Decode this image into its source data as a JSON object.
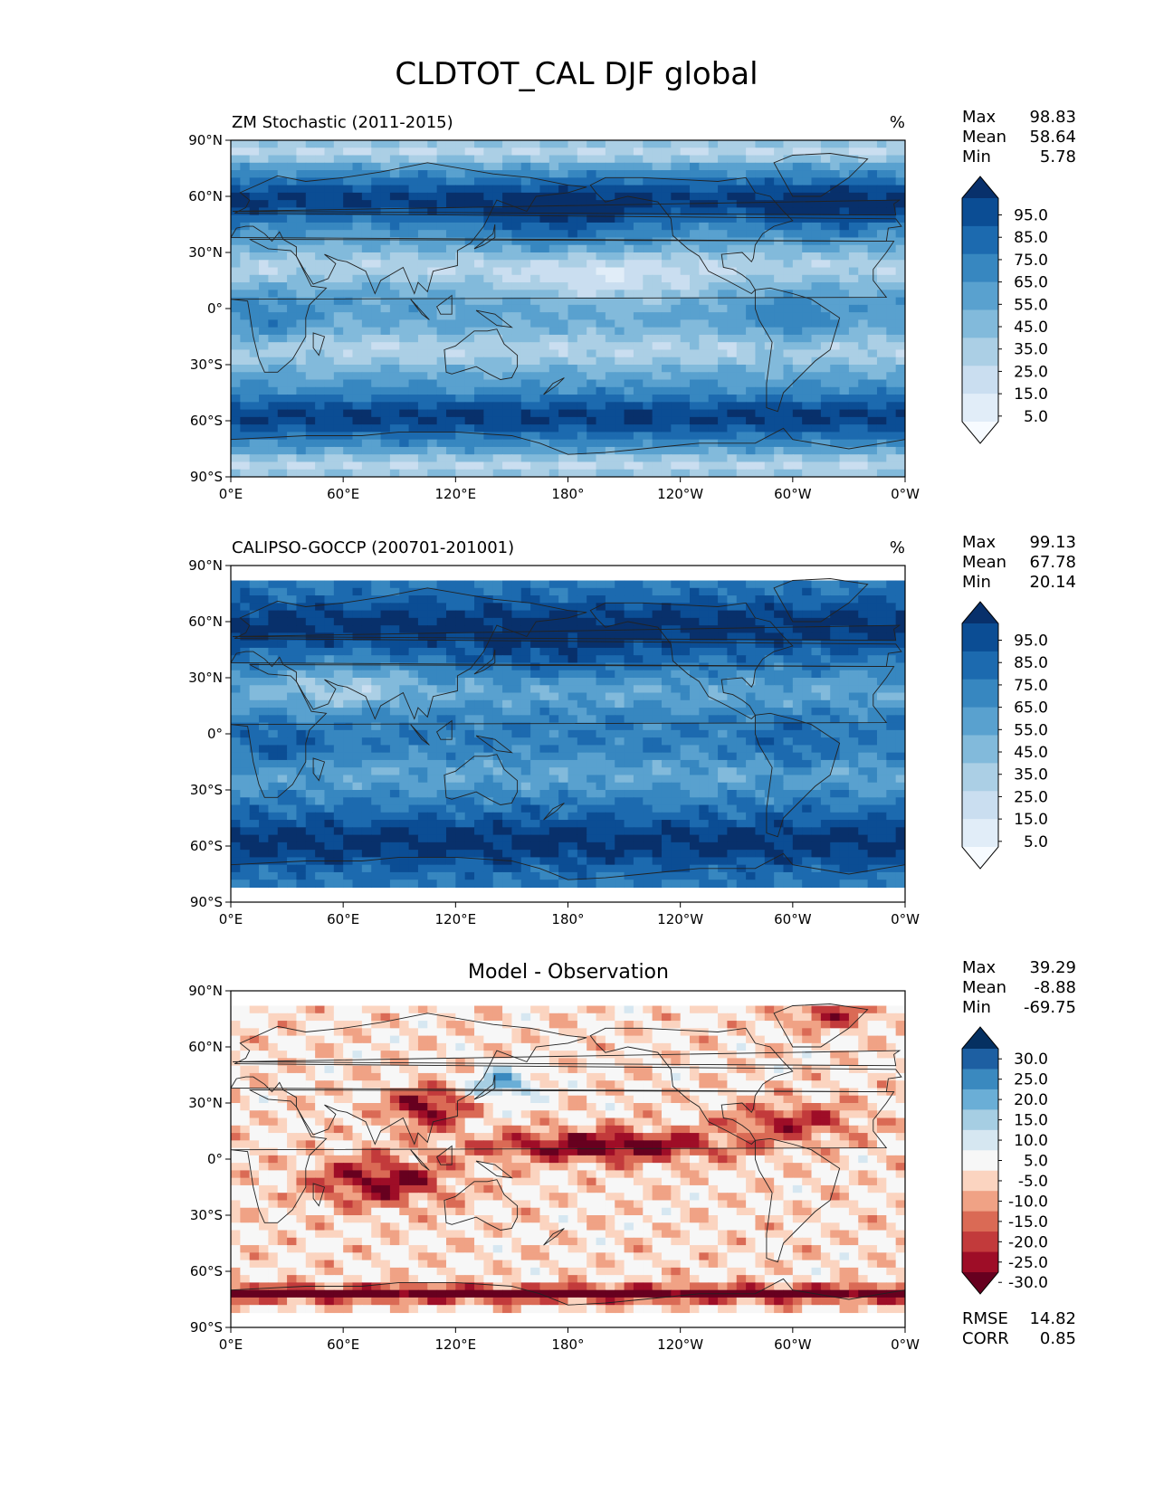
{
  "figure_title": "CLDTOT_CAL DJF global",
  "x_ticks": [
    "0°E",
    "60°E",
    "120°E",
    "180°",
    "120°W",
    "60°W",
    "0°W"
  ],
  "y_ticks": [
    "90°N",
    "60°N",
    "30°N",
    "0°",
    "30°S",
    "60°S",
    "90°S"
  ],
  "stat_labels": {
    "max": "Max",
    "mean": "Mean",
    "min": "Min",
    "rmse": "RMSE",
    "corr": "CORR"
  },
  "chart_data": [
    {
      "type": "heatmap",
      "title": "ZM Stochastic (2011-2015)",
      "units": "%",
      "stats": {
        "max": "98.83",
        "mean": "58.64",
        "min": "5.78"
      },
      "colorbar_labels": [
        "95.0",
        "85.0",
        "75.0",
        "65.0",
        "55.0",
        "45.0",
        "35.0",
        "25.0",
        "15.0",
        "5.0"
      ],
      "colormap": "Blues",
      "lat_range": [
        -90,
        90
      ],
      "lon_range": [
        0,
        360
      ]
    },
    {
      "type": "heatmap",
      "title": "CALIPSO-GOCCP (200701-201001)",
      "units": "%",
      "stats": {
        "max": "99.13",
        "mean": "67.78",
        "min": "20.14"
      },
      "colorbar_labels": [
        "95.0",
        "85.0",
        "75.0",
        "65.0",
        "55.0",
        "45.0",
        "35.0",
        "25.0",
        "15.0",
        "5.0"
      ],
      "colormap": "Blues",
      "lat_range": [
        -82,
        82
      ],
      "lon_range": [
        0,
        360
      ]
    },
    {
      "type": "heatmap",
      "title": "Model - Observation",
      "units": "",
      "stats": {
        "max": "39.29",
        "mean": "-8.88",
        "min": "-69.75"
      },
      "colorbar_labels": [
        "30.0",
        "25.0",
        "20.0",
        "15.0",
        "10.0",
        "5.0",
        "-5.0",
        "-10.0",
        "-15.0",
        "-20.0",
        "-25.0",
        "-30.0"
      ],
      "colormap": "RdBu",
      "metrics": {
        "rmse": "14.82",
        "corr": "0.85"
      },
      "lat_range": [
        -82,
        82
      ],
      "lon_range": [
        0,
        360
      ]
    }
  ],
  "colors": {
    "blues": [
      "#f7fbff",
      "#e1edf8",
      "#cadef0",
      "#abcfe5",
      "#82badb",
      "#59a1cf",
      "#3787c0",
      "#1c6aaf",
      "#0b4d94",
      "#08306b"
    ],
    "diverging": [
      "#67001f",
      "#9e0d27",
      "#c23a3b",
      "#da6a55",
      "#f0a285",
      "#fbd4c0",
      "#f7f7f7",
      "#d6e7f1",
      "#a6cee3",
      "#6aaed6",
      "#3a89bf",
      "#1d5fa2",
      "#053061"
    ]
  }
}
